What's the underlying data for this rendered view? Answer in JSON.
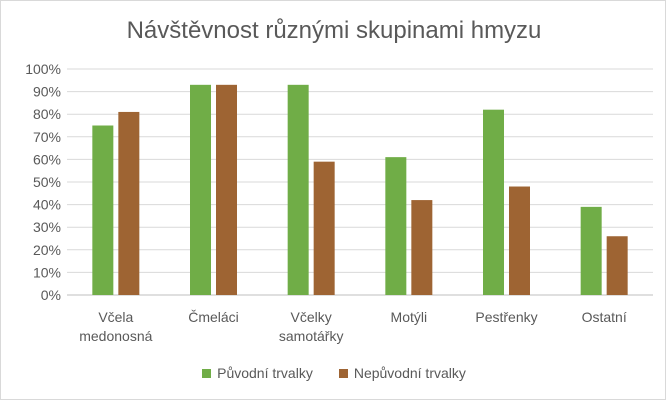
{
  "chart_data": {
    "type": "bar",
    "title": "Návštěvnost různými skupinami hmyzu",
    "xlabel": "",
    "ylabel": "",
    "ylim": [
      0,
      100
    ],
    "yticks": [
      "0%",
      "10%",
      "20%",
      "30%",
      "40%",
      "50%",
      "60%",
      "70%",
      "80%",
      "90%",
      "100%"
    ],
    "grid": true,
    "legend_position": "bottom",
    "categories": [
      [
        "Včela",
        "medonosná"
      ],
      [
        "Čmeláci"
      ],
      [
        "Včelky",
        "samotářky"
      ],
      [
        "Motýli"
      ],
      [
        "Pestřenky"
      ],
      [
        "Ostatní"
      ]
    ],
    "series": [
      {
        "name": "Původní trvalky",
        "color": "#70ad47",
        "values": [
          75,
          93,
          93,
          61,
          82,
          39
        ]
      },
      {
        "name": "Nepůvodní trvalky",
        "color": "#9e6433",
        "values": [
          81,
          93,
          59,
          42,
          48,
          26
        ]
      }
    ]
  }
}
